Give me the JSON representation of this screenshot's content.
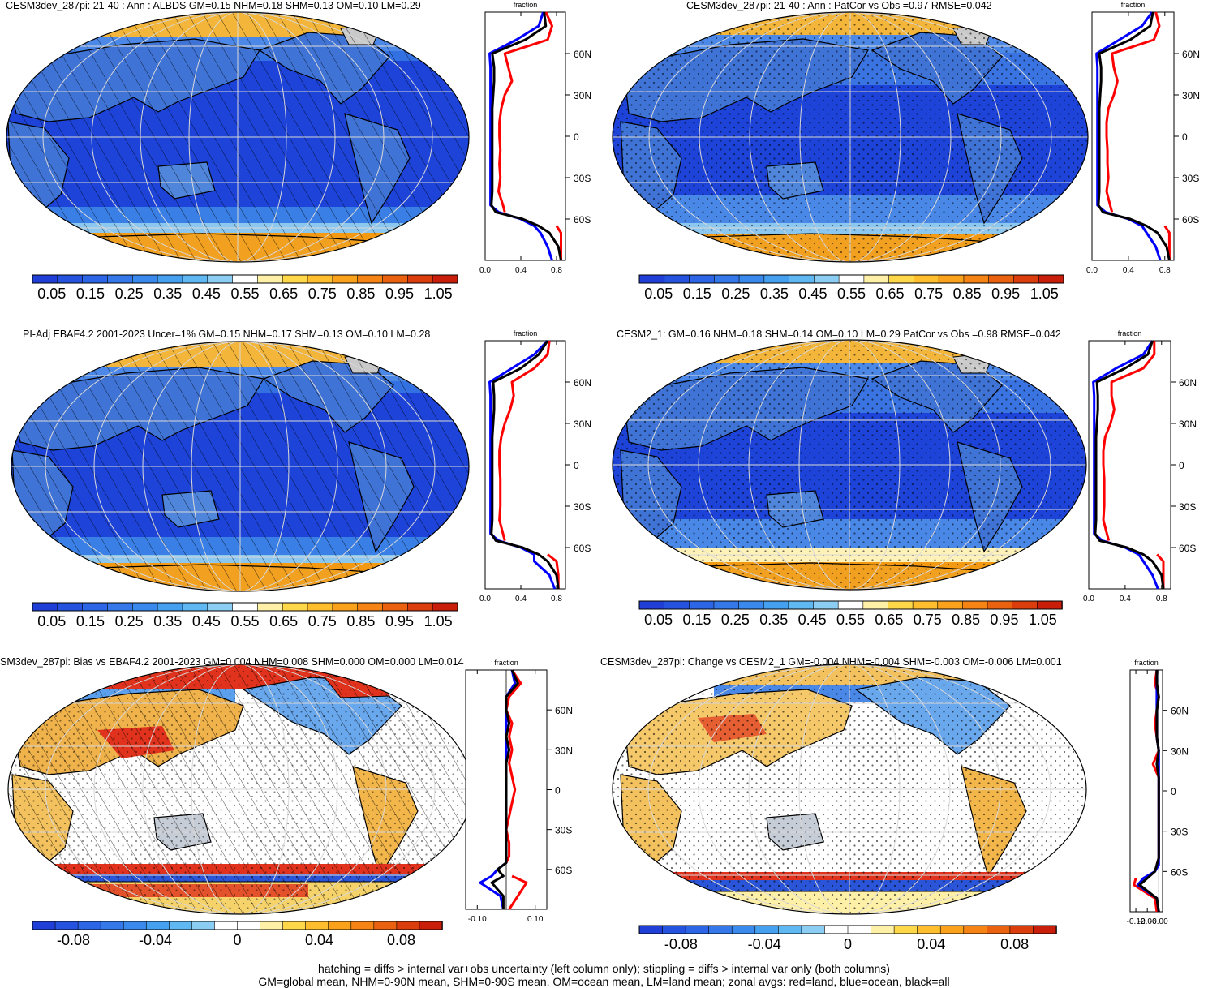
{
  "colors": {
    "abs_scale": [
      "#1f3fd7",
      "#2553e0",
      "#2c66e6",
      "#3478ea",
      "#3a8aee",
      "#45a0f0",
      "#5fb8f2",
      "#8ccdf3",
      "#ffffff",
      "#fff0a8",
      "#ffd84a",
      "#ffbe2e",
      "#fba21c",
      "#f58414",
      "#ea620f",
      "#db3d0c",
      "#c81e0a"
    ],
    "diff_scale": [
      "#1f3fd7",
      "#2553e0",
      "#2c66e6",
      "#3478ea",
      "#3a8aee",
      "#45a0f0",
      "#5fb8f2",
      "#8ccdf3",
      "#ffffff",
      "#ffffff",
      "#fff0a8",
      "#ffd84a",
      "#ffbe2e",
      "#fba21c",
      "#f58414",
      "#ea620f",
      "#db3d0c",
      "#c81e0a"
    ],
    "land": "red",
    "ocean": "blue",
    "all": "black",
    "grid": "#d0d0d0"
  },
  "icons": {
    "coastline": "coastline-outline",
    "hatching": "diagonal-hatch-pattern",
    "stippling": "dot-stipple-pattern"
  },
  "footer": {
    "line1": "hatching = diffs > internal var+obs uncertainty (left column only); stippling = diffs > internal var only (both columns)",
    "line2": "GM=global mean, NHM=0-90N mean, SHM=0-90S mean, OM=ocean mean, LM=land mean; zonal avgs: red=land, blue=ocean, black=all"
  },
  "chart_data": [
    {
      "type": "heatmap",
      "title": "CESM3dev_287pi: 21-40 : Ann : ALBDS GM=0.15 NHM=0.18 SHM=0.13 OM=0.10 LM=0.29",
      "colorbar": {
        "range": [
          0,
          1.1
        ],
        "tick_labels": [
          "0.05",
          "0.15",
          "0.25",
          "0.35",
          "0.45",
          "0.55",
          "0.65",
          "0.75",
          "0.85",
          "0.95",
          "1.05"
        ]
      },
      "overlay": "hatching+stippling",
      "zonal": {
        "type": "line",
        "xlabel": "fraction",
        "xlim": [
          0,
          0.9
        ],
        "ylim": [
          -90,
          90
        ],
        "x_tick_labels": [
          "0.0",
          "0.4",
          "0.8"
        ],
        "y_tick_labels": [
          "60N",
          "30N",
          "0",
          "30S",
          "60S"
        ],
        "lat": [
          90,
          80,
          70,
          60,
          50,
          40,
          30,
          20,
          10,
          0,
          -10,
          -20,
          -30,
          -40,
          -50,
          -55,
          -60,
          -65,
          -70,
          -80,
          -90
        ],
        "series": [
          {
            "name": "land",
            "color": "red",
            "values": [
              0.68,
              0.75,
              0.7,
              0.22,
              0.26,
              0.3,
              0.22,
              0.18,
              0.16,
              0.16,
              0.17,
              0.16,
              0.17,
              0.15,
              0.2,
              0.22,
              null,
              0.8,
              0.85,
              0.85,
              0.85
            ]
          },
          {
            "name": "ocean",
            "color": "blue",
            "values": [
              0.65,
              0.6,
              0.35,
              0.05,
              0.06,
              0.06,
              0.06,
              0.06,
              0.06,
              0.06,
              0.06,
              0.06,
              0.06,
              0.06,
              0.06,
              0.15,
              0.4,
              0.55,
              0.62,
              0.7,
              0.75
            ]
          },
          {
            "name": "all",
            "color": "black",
            "values": [
              0.66,
              0.68,
              0.45,
              0.08,
              0.1,
              0.1,
              0.09,
              0.08,
              0.08,
              0.08,
              0.08,
              0.08,
              0.08,
              0.08,
              0.07,
              0.12,
              0.42,
              0.6,
              0.72,
              0.82,
              0.85
            ]
          }
        ]
      }
    },
    {
      "type": "heatmap",
      "title": "CESM3dev_287pi: 21-40 : Ann : PatCor vs Obs =0.97 RMSE=0.042",
      "colorbar": {
        "range": [
          0,
          1.1
        ],
        "tick_labels": [
          "0.05",
          "0.15",
          "0.25",
          "0.35",
          "0.45",
          "0.55",
          "0.65",
          "0.75",
          "0.85",
          "0.95",
          "1.05"
        ]
      },
      "overlay": "stippling",
      "zonal": {
        "type": "line",
        "xlabel": "fraction",
        "xlim": [
          0,
          0.9
        ],
        "ylim": [
          -90,
          90
        ],
        "x_tick_labels": [
          "0.0",
          "0.4",
          "0.8"
        ],
        "y_tick_labels": [
          "60N",
          "30N",
          "0",
          "30S",
          "60S"
        ],
        "lat": [
          90,
          80,
          70,
          60,
          50,
          40,
          30,
          20,
          10,
          0,
          -10,
          -20,
          -30,
          -40,
          -50,
          -55,
          -60,
          -65,
          -70,
          -80,
          -90
        ],
        "series": [
          {
            "name": "land",
            "color": "red",
            "values": [
              0.7,
              0.74,
              0.68,
              0.22,
              0.24,
              0.28,
              0.24,
              0.18,
              0.16,
              0.16,
              0.17,
              0.17,
              0.18,
              0.16,
              0.2,
              0.22,
              null,
              0.8,
              0.85,
              0.85,
              0.85
            ]
          },
          {
            "name": "ocean",
            "color": "blue",
            "values": [
              0.66,
              0.55,
              0.3,
              0.05,
              0.06,
              0.06,
              0.06,
              0.06,
              0.06,
              0.06,
              0.06,
              0.06,
              0.06,
              0.06,
              0.06,
              0.15,
              0.4,
              0.55,
              0.6,
              0.7,
              0.75
            ]
          },
          {
            "name": "all",
            "color": "black",
            "values": [
              0.67,
              0.64,
              0.42,
              0.08,
              0.1,
              0.1,
              0.09,
              0.08,
              0.08,
              0.08,
              0.08,
              0.08,
              0.08,
              0.08,
              0.07,
              0.12,
              0.42,
              0.6,
              0.72,
              0.82,
              0.85
            ]
          }
        ]
      }
    },
    {
      "type": "heatmap",
      "title": "PI-Adj EBAF4.2 2001-2023 Uncer=1% GM=0.15 NHM=0.17 SHM=0.13 OM=0.10 LM=0.28",
      "colorbar": {
        "range": [
          0,
          1.1
        ],
        "tick_labels": [
          "0.05",
          "0.15",
          "0.25",
          "0.35",
          "0.45",
          "0.55",
          "0.65",
          "0.75",
          "0.85",
          "0.95",
          "1.05"
        ]
      },
      "overlay": "hatching+stippling",
      "zonal": {
        "type": "line",
        "xlabel": "fraction",
        "xlim": [
          0,
          0.9
        ],
        "ylim": [
          -90,
          90
        ],
        "x_tick_labels": [
          "0.0",
          "0.4",
          "0.8"
        ],
        "y_tick_labels": [
          "60N",
          "30N",
          "0",
          "30S",
          "60S"
        ],
        "lat": [
          90,
          80,
          70,
          60,
          50,
          40,
          30,
          20,
          10,
          0,
          -10,
          -20,
          -30,
          -40,
          -50,
          -55,
          -60,
          -65,
          -70,
          -80,
          -90
        ],
        "series": [
          {
            "name": "land",
            "color": "red",
            "values": [
              0.72,
              0.7,
              0.55,
              0.3,
              0.32,
              0.28,
              0.22,
              0.18,
              0.16,
              0.16,
              0.17,
              0.17,
              0.17,
              0.16,
              0.2,
              0.22,
              null,
              0.7,
              0.8,
              0.82,
              0.82
            ]
          },
          {
            "name": "ocean",
            "color": "blue",
            "values": [
              0.7,
              0.55,
              0.3,
              0.05,
              0.06,
              0.06,
              0.06,
              0.06,
              0.06,
              0.06,
              0.06,
              0.06,
              0.06,
              0.06,
              0.06,
              0.15,
              0.4,
              0.55,
              0.55,
              0.72,
              0.78
            ]
          },
          {
            "name": "all",
            "color": "black",
            "values": [
              0.7,
              0.6,
              0.4,
              0.09,
              0.1,
              0.1,
              0.09,
              0.08,
              0.08,
              0.08,
              0.08,
              0.08,
              0.08,
              0.08,
              0.07,
              0.12,
              0.42,
              0.6,
              0.7,
              0.8,
              0.82
            ]
          }
        ]
      }
    },
    {
      "type": "heatmap",
      "title": "CESM2_1: GM=0.16 NHM=0.18 SHM=0.14 OM=0.10 LM=0.29 PatCor vs Obs =0.98 RMSE=0.042",
      "colorbar": {
        "range": [
          0,
          1.1
        ],
        "tick_labels": [
          "0.05",
          "0.15",
          "0.25",
          "0.35",
          "0.45",
          "0.55",
          "0.65",
          "0.75",
          "0.85",
          "0.95",
          "1.05"
        ]
      },
      "overlay": "stippling",
      "zonal": {
        "type": "line",
        "xlabel": "fraction",
        "xlim": [
          0,
          0.9
        ],
        "ylim": [
          -90,
          90
        ],
        "x_tick_labels": [
          "0.0",
          "0.4",
          "0.8"
        ],
        "y_tick_labels": [
          "60N",
          "30N",
          "0",
          "30S",
          "60S"
        ],
        "lat": [
          90,
          80,
          70,
          60,
          50,
          40,
          30,
          20,
          10,
          0,
          -10,
          -20,
          -30,
          -40,
          -50,
          -55,
          -60,
          -65,
          -70,
          -80,
          -90
        ],
        "series": [
          {
            "name": "land",
            "color": "red",
            "values": [
              0.72,
              0.72,
              0.6,
              0.25,
              0.25,
              0.28,
              0.24,
              0.18,
              0.16,
              0.16,
              0.17,
              0.17,
              0.17,
              0.16,
              0.2,
              0.22,
              null,
              0.75,
              0.82,
              0.82,
              0.82
            ]
          },
          {
            "name": "ocean",
            "color": "blue",
            "values": [
              0.7,
              0.6,
              0.3,
              0.05,
              0.06,
              0.06,
              0.06,
              0.06,
              0.06,
              0.06,
              0.06,
              0.06,
              0.06,
              0.06,
              0.06,
              0.15,
              0.4,
              0.55,
              0.6,
              0.7,
              0.76
            ]
          },
          {
            "name": "all",
            "color": "black",
            "values": [
              0.7,
              0.65,
              0.4,
              0.09,
              0.1,
              0.1,
              0.09,
              0.08,
              0.08,
              0.08,
              0.08,
              0.08,
              0.08,
              0.08,
              0.07,
              0.12,
              0.42,
              0.6,
              0.7,
              0.8,
              0.82
            ]
          }
        ]
      }
    },
    {
      "type": "heatmap",
      "title": "SM3dev_287pi: Bias vs EBAF4.2 2001-2023 GM=0.004 NHM=0.008 SHM=0.000 OM=0.000 LM=0.014",
      "colorbar": {
        "range": [
          -0.1,
          0.1
        ],
        "tick_labels": [
          "-0.08",
          "-0.04",
          "0",
          "0.04",
          "0.08"
        ],
        "tick_values": [
          -0.08,
          -0.04,
          0,
          0.04,
          0.08
        ]
      },
      "overlay": "hatching+stippling",
      "zonal": {
        "type": "line",
        "xlabel": "fraction",
        "xlim": [
          -0.14,
          0.14
        ],
        "ylim": [
          -90,
          90
        ],
        "x_tick_labels": [
          "-0.10",
          "0.10"
        ],
        "x_tick_values": [
          -0.1,
          0.1
        ],
        "y_tick_labels": [
          "60N",
          "30N",
          "0",
          "30S",
          "60S"
        ],
        "lat": [
          90,
          80,
          70,
          60,
          50,
          40,
          30,
          20,
          10,
          0,
          -10,
          -20,
          -30,
          -40,
          -50,
          -55,
          -60,
          -65,
          -70,
          -80,
          -90
        ],
        "series": [
          {
            "name": "land",
            "color": "red",
            "values": [
              0.02,
              0.05,
              0.01,
              0.0,
              0.02,
              0.01,
              0.02,
              0.01,
              0.02,
              0.03,
              0.02,
              0.01,
              0.0,
              0.01,
              0.01,
              0.0,
              null,
              0.02,
              0.07,
              0.04,
              0.01
            ]
          },
          {
            "name": "ocean",
            "color": "blue",
            "values": [
              0.02,
              0.03,
              0.0,
              0.0,
              0.0,
              0.0,
              0.0,
              0.0,
              0.0,
              0.0,
              0.0,
              0.0,
              0.0,
              0.0,
              0.0,
              0.0,
              -0.03,
              -0.05,
              -0.09,
              -0.02,
              -0.01
            ]
          },
          {
            "name": "all",
            "color": "black",
            "values": [
              0.02,
              0.04,
              0.0,
              0.0,
              0.01,
              0.0,
              0.01,
              0.0,
              0.0,
              0.0,
              0.0,
              0.0,
              0.0,
              0.0,
              0.0,
              0.0,
              -0.03,
              -0.01,
              -0.05,
              -0.01,
              -0.01
            ]
          }
        ]
      }
    },
    {
      "type": "heatmap",
      "title": "CESM3dev_287pi: Change vs CESM2_1 GM=-0.004 NHM=-0.004 SHM=-0.003 OM=-0.006 LM=0.001",
      "colorbar": {
        "range": [
          -0.1,
          0.1
        ],
        "tick_labels": [
          "-0.08",
          "-0.04",
          "0",
          "0.04",
          "0.08"
        ],
        "tick_values": [
          -0.08,
          -0.04,
          0,
          0.04,
          0.08
        ]
      },
      "overlay": "stippling",
      "zonal": {
        "type": "line",
        "xlabel": "fraction",
        "xlim": [
          -0.15,
          0.02
        ],
        "ylim": [
          -90,
          90
        ],
        "x_tick_labels": [
          "-0.12",
          "-0.06",
          "-0.00"
        ],
        "x_tick_values": [
          -0.12,
          -0.06,
          0.0
        ],
        "y_tick_labels": [
          "60N",
          "30N",
          "0",
          "30S",
          "60S"
        ],
        "lat": [
          90,
          80,
          70,
          60,
          50,
          40,
          30,
          20,
          10,
          0,
          -10,
          -20,
          -30,
          -40,
          -50,
          -55,
          -60,
          -65,
          -70,
          -80,
          -90
        ],
        "series": [
          {
            "name": "land",
            "color": "red",
            "values": [
              -0.01,
              -0.02,
              0.0,
              -0.01,
              -0.02,
              -0.01,
              0.0,
              -0.03,
              0.0,
              0.0,
              0.0,
              0.0,
              0.0,
              0.0,
              0.0,
              -0.01,
              null,
              -0.12,
              -0.13,
              -0.02,
              -0.01
            ]
          },
          {
            "name": "ocean",
            "color": "blue",
            "values": [
              -0.01,
              -0.01,
              -0.01,
              -0.01,
              -0.01,
              -0.01,
              0.0,
              0.0,
              0.0,
              0.0,
              0.0,
              0.0,
              0.0,
              0.0,
              0.0,
              0.0,
              -0.02,
              -0.08,
              -0.11,
              -0.01,
              0.0
            ]
          },
          {
            "name": "all",
            "color": "black",
            "values": [
              -0.01,
              -0.01,
              0.0,
              -0.01,
              -0.01,
              -0.01,
              0.0,
              -0.01,
              0.0,
              0.0,
              0.0,
              0.0,
              0.0,
              0.0,
              0.0,
              -0.01,
              -0.02,
              -0.06,
              -0.1,
              -0.01,
              0.0
            ]
          }
        ]
      }
    }
  ]
}
